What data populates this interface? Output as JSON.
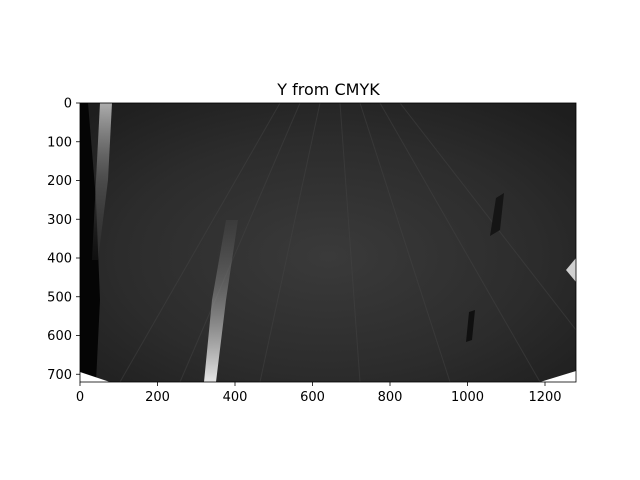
{
  "figure": {
    "title": "Y from CMYK"
  },
  "image": {
    "description_colormap": "gray",
    "x_ticks": [
      "0",
      "200",
      "400",
      "600",
      "800",
      "1000",
      "1200"
    ],
    "y_ticks": [
      "0",
      "100",
      "200",
      "300",
      "400",
      "500",
      "600",
      "700"
    ],
    "x_tick_values": [
      0,
      200,
      400,
      600,
      800,
      1000,
      1200
    ],
    "y_tick_values": [
      0,
      100,
      200,
      300,
      400,
      500,
      600,
      700
    ],
    "xlim": [
      0,
      1280
    ],
    "ylim": [
      720,
      0
    ]
  }
}
